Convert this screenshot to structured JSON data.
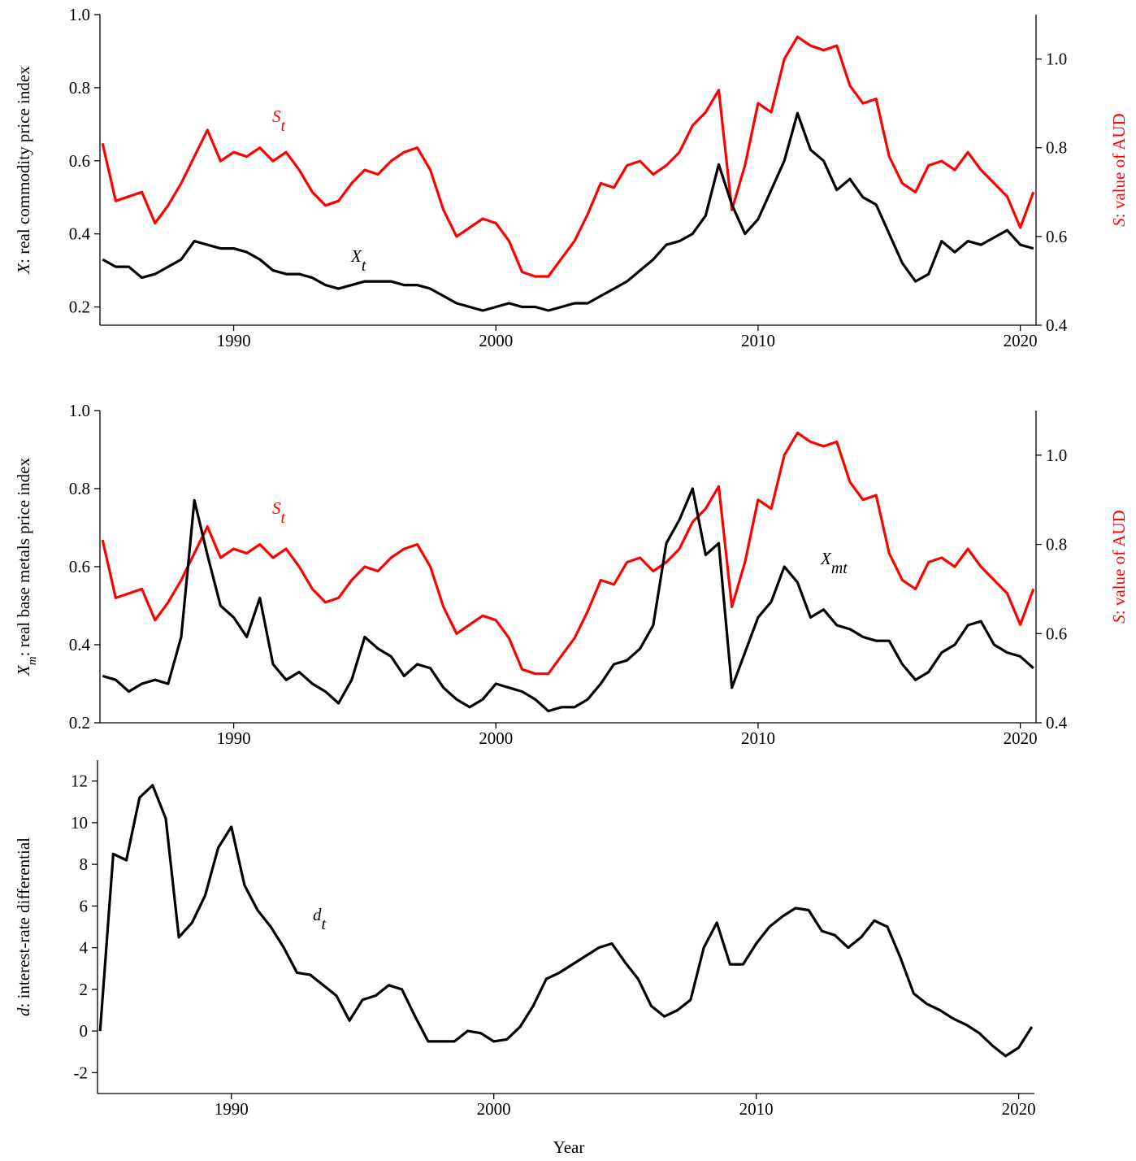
{
  "chart_data": [
    {
      "type": "line",
      "ylabel": {
        "symbol": "X",
        "text": ": real commodity price index"
      },
      "y2label": {
        "symbol": "S",
        "text": ": value of AUD",
        "color": "#ff0000"
      },
      "xlim": [
        1984.9,
        2020.6
      ],
      "xticks": [
        1990,
        2000,
        2010,
        2020
      ],
      "ylim": [
        0.15,
        1.0
      ],
      "yticks": [
        0.2,
        0.4,
        0.6,
        0.8,
        {
          "value": 1,
          "label": "1.0"
        }
      ],
      "y2lim": [
        0.4,
        1.1
      ],
      "y2ticks": [
        0.4,
        0.6,
        0.8,
        {
          "value": 1,
          "label": "1.0"
        }
      ],
      "x": [
        1985.0,
        1985.5,
        1986.0,
        1986.5,
        1987.0,
        1987.5,
        1988.0,
        1988.5,
        1989.0,
        1989.5,
        1990.0,
        1990.5,
        1991.0,
        1991.5,
        1992.0,
        1992.5,
        1993.0,
        1993.5,
        1994.0,
        1994.5,
        1995.0,
        1995.5,
        1996.0,
        1996.5,
        1997.0,
        1997.5,
        1998.0,
        1998.5,
        1999.0,
        1999.5,
        2000.0,
        2000.5,
        2001.0,
        2001.5,
        2002.0,
        2002.5,
        2003.0,
        2003.5,
        2004.0,
        2004.5,
        2005.0,
        2005.5,
        2006.0,
        2006.5,
        2007.0,
        2007.5,
        2008.0,
        2008.5,
        2009.0,
        2009.5,
        2010.0,
        2010.5,
        2011.0,
        2011.5,
        2012.0,
        2012.5,
        2013.0,
        2013.5,
        2014.0,
        2014.5,
        2015.0,
        2015.5,
        2016.0,
        2016.5,
        2017.0,
        2017.5,
        2018.0,
        2018.5,
        2019.0,
        2019.5,
        2020.0,
        2020.5
      ],
      "series": [
        {
          "color": "#ff0000",
          "axis": "y2",
          "values": [
            0.81,
            0.68,
            0.69,
            0.7,
            0.63,
            0.67,
            0.72,
            0.78,
            0.84,
            0.77,
            0.79,
            0.78,
            0.8,
            0.77,
            0.79,
            0.75,
            0.7,
            0.67,
            0.68,
            0.72,
            0.75,
            0.74,
            0.77,
            0.79,
            0.8,
            0.75,
            0.66,
            0.6,
            0.62,
            0.64,
            0.63,
            0.59,
            0.52,
            0.51,
            0.51,
            0.55,
            0.59,
            0.65,
            0.72,
            0.71,
            0.76,
            0.77,
            0.74,
            0.76,
            0.79,
            0.85,
            0.88,
            0.93,
            0.66,
            0.76,
            0.9,
            0.88,
            1.0,
            1.05,
            1.03,
            1.02,
            1.03,
            0.94,
            0.9,
            0.91,
            0.78,
            0.72,
            0.7,
            0.76,
            0.77,
            0.75,
            0.79,
            0.75,
            0.72,
            0.69,
            0.62,
            0.7
          ]
        },
        {
          "color": "#000000",
          "values": [
            0.33,
            0.31,
            0.31,
            0.28,
            0.29,
            0.31,
            0.33,
            0.38,
            0.37,
            0.36,
            0.36,
            0.35,
            0.33,
            0.3,
            0.29,
            0.29,
            0.28,
            0.26,
            0.25,
            0.26,
            0.27,
            0.27,
            0.27,
            0.26,
            0.26,
            0.25,
            0.23,
            0.21,
            0.2,
            0.19,
            0.2,
            0.21,
            0.2,
            0.2,
            0.19,
            0.2,
            0.21,
            0.21,
            0.23,
            0.25,
            0.27,
            0.3,
            0.33,
            0.37,
            0.38,
            0.4,
            0.45,
            0.59,
            0.48,
            0.4,
            0.44,
            0.52,
            0.6,
            0.73,
            0.63,
            0.6,
            0.52,
            0.55,
            0.5,
            0.48,
            0.4,
            0.32,
            0.27,
            0.29,
            0.38,
            0.35,
            0.38,
            0.37,
            0.39,
            0.41,
            0.37,
            0.36
          ]
        }
      ],
      "annotations": [
        {
          "text": "S",
          "sub": "t",
          "color": "#ff0000"
        },
        {
          "text": "X",
          "sub": "t",
          "color": "#000000"
        }
      ]
    },
    {
      "type": "line",
      "ylabel": {
        "symbol": "X",
        "sub": "m",
        "text": ": real base metals price index"
      },
      "y2label": {
        "symbol": "S",
        "text": ": value of AUD",
        "color": "#ff0000"
      },
      "xlim": [
        1984.9,
        2020.6
      ],
      "xticks": [
        1990,
        2000,
        2010,
        2020
      ],
      "ylim": [
        0.2,
        1.0
      ],
      "yticks": [
        0.2,
        0.4,
        0.6,
        0.8,
        {
          "value": 1,
          "label": "1.0"
        }
      ],
      "y2lim": [
        0.4,
        1.1
      ],
      "y2ticks": [
        0.4,
        0.6,
        0.8,
        {
          "value": 1,
          "label": "1.0"
        }
      ],
      "x": [
        1985.0,
        1985.5,
        1986.0,
        1986.5,
        1987.0,
        1987.5,
        1988.0,
        1988.5,
        1989.0,
        1989.5,
        1990.0,
        1990.5,
        1991.0,
        1991.5,
        1992.0,
        1992.5,
        1993.0,
        1993.5,
        1994.0,
        1994.5,
        1995.0,
        1995.5,
        1996.0,
        1996.5,
        1997.0,
        1997.5,
        1998.0,
        1998.5,
        1999.0,
        1999.5,
        2000.0,
        2000.5,
        2001.0,
        2001.5,
        2002.0,
        2002.5,
        2003.0,
        2003.5,
        2004.0,
        2004.5,
        2005.0,
        2005.5,
        2006.0,
        2006.5,
        2007.0,
        2007.5,
        2008.0,
        2008.5,
        2009.0,
        2009.5,
        2010.0,
        2010.5,
        2011.0,
        2011.5,
        2012.0,
        2012.5,
        2013.0,
        2013.5,
        2014.0,
        2014.5,
        2015.0,
        2015.5,
        2016.0,
        2016.5,
        2017.0,
        2017.5,
        2018.0,
        2018.5,
        2019.0,
        2019.5,
        2020.0,
        2020.5
      ],
      "series": [
        {
          "color": "#ff0000",
          "axis": "y2",
          "values": [
            0.81,
            0.68,
            0.69,
            0.7,
            0.63,
            0.67,
            0.72,
            0.78,
            0.84,
            0.77,
            0.79,
            0.78,
            0.8,
            0.77,
            0.79,
            0.75,
            0.7,
            0.67,
            0.68,
            0.72,
            0.75,
            0.74,
            0.77,
            0.79,
            0.8,
            0.75,
            0.66,
            0.6,
            0.62,
            0.64,
            0.63,
            0.59,
            0.52,
            0.51,
            0.51,
            0.55,
            0.59,
            0.65,
            0.72,
            0.71,
            0.76,
            0.77,
            0.74,
            0.76,
            0.79,
            0.85,
            0.88,
            0.93,
            0.66,
            0.76,
            0.9,
            0.88,
            1.0,
            1.05,
            1.03,
            1.02,
            1.03,
            0.94,
            0.9,
            0.91,
            0.78,
            0.72,
            0.7,
            0.76,
            0.77,
            0.75,
            0.79,
            0.75,
            0.72,
            0.69,
            0.62,
            0.7
          ]
        },
        {
          "color": "#000000",
          "values": [
            0.32,
            0.31,
            0.28,
            0.3,
            0.31,
            0.3,
            0.42,
            0.77,
            0.63,
            0.5,
            0.47,
            0.42,
            0.52,
            0.35,
            0.31,
            0.33,
            0.3,
            0.28,
            0.25,
            0.31,
            0.42,
            0.39,
            0.37,
            0.32,
            0.35,
            0.34,
            0.29,
            0.26,
            0.24,
            0.26,
            0.3,
            0.29,
            0.28,
            0.26,
            0.23,
            0.24,
            0.24,
            0.26,
            0.3,
            0.35,
            0.36,
            0.39,
            0.45,
            0.66,
            0.72,
            0.8,
            0.63,
            0.66,
            0.29,
            0.38,
            0.47,
            0.51,
            0.6,
            0.56,
            0.47,
            0.49,
            0.45,
            0.44,
            0.42,
            0.41,
            0.41,
            0.35,
            0.31,
            0.33,
            0.38,
            0.4,
            0.45,
            0.46,
            0.4,
            0.38,
            0.37,
            0.34
          ]
        }
      ],
      "annotations": [
        {
          "text": "S",
          "sub": "t",
          "color": "#ff0000"
        },
        {
          "text": "X",
          "sub": "mt",
          "color": "#000000"
        }
      ]
    },
    {
      "type": "line",
      "ylabel": {
        "symbol": "d",
        "text": ": interest-rate differential"
      },
      "xlabel": "Year",
      "xlim": [
        1984.9,
        2020.6
      ],
      "xticks": [
        1990,
        2000,
        2010,
        2020
      ],
      "ylim": [
        -3,
        13
      ],
      "yticks": [
        -2,
        0,
        2,
        4,
        6,
        8,
        10,
        12
      ],
      "x": [
        1985.0,
        1985.5,
        1986.0,
        1986.5,
        1987.0,
        1987.5,
        1988.0,
        1988.5,
        1989.0,
        1989.5,
        1990.0,
        1990.5,
        1991.0,
        1991.5,
        1992.0,
        1992.5,
        1993.0,
        1993.5,
        1994.0,
        1994.5,
        1995.0,
        1995.5,
        1996.0,
        1996.5,
        1997.0,
        1997.5,
        1998.0,
        1998.5,
        1999.0,
        1999.5,
        2000.0,
        2000.5,
        2001.0,
        2001.5,
        2002.0,
        2002.5,
        2003.0,
        2003.5,
        2004.0,
        2004.5,
        2005.0,
        2005.5,
        2006.0,
        2006.5,
        2007.0,
        2007.5,
        2008.0,
        2008.5,
        2009.0,
        2009.5,
        2010.0,
        2010.5,
        2011.0,
        2011.5,
        2012.0,
        2012.5,
        2013.0,
        2013.5,
        2014.0,
        2014.5,
        2015.0,
        2015.5,
        2016.0,
        2016.5,
        2017.0,
        2017.5,
        2018.0,
        2018.5,
        2019.0,
        2019.5,
        2020.0,
        2020.5
      ],
      "series": [
        {
          "color": "#000000",
          "values": [
            0,
            8.5,
            8.2,
            11.2,
            11.8,
            10.2,
            4.5,
            5.2,
            6.5,
            8.8,
            9.8,
            7.0,
            5.8,
            5.0,
            4.0,
            2.8,
            2.7,
            2.2,
            1.7,
            0.5,
            1.5,
            1.7,
            2.2,
            2.0,
            0.7,
            -0.5,
            -0.5,
            -0.5,
            0.0,
            -0.1,
            -0.5,
            -0.4,
            0.2,
            1.2,
            2.5,
            2.8,
            3.2,
            3.6,
            4.0,
            4.2,
            3.3,
            2.5,
            1.2,
            0.7,
            1.0,
            1.5,
            4.0,
            5.2,
            3.2,
            3.2,
            4.2,
            5.0,
            5.5,
            5.9,
            5.8,
            4.8,
            4.6,
            4.0,
            4.5,
            5.3,
            5.0,
            3.5,
            1.8,
            1.3,
            1.0,
            0.6,
            0.3,
            -0.1,
            -0.7,
            -1.2,
            -0.8,
            0.2
          ]
        }
      ],
      "annotations": [
        {
          "text": "d",
          "sub": "t",
          "color": "#000000"
        }
      ]
    }
  ]
}
